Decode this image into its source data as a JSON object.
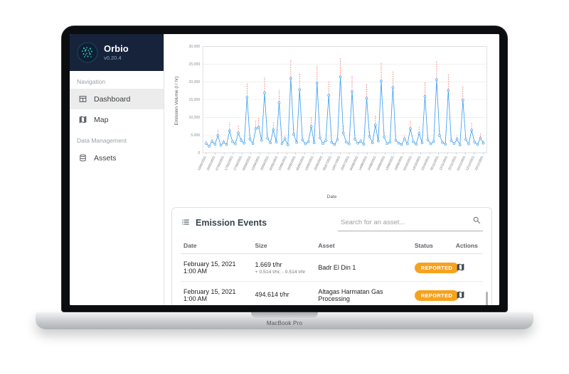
{
  "device": {
    "label": "MacBook Pro"
  },
  "colors": {
    "brand_bg": "#16233B",
    "status": "#F6A21E",
    "chart_line": "#41A0F0",
    "chart_error": "#EE6A5F",
    "selected_bg": "#ECECEC"
  },
  "app": {
    "sidebar": {
      "brand": {
        "name": "Orbio",
        "version": "v0.20.4"
      },
      "sections": [
        {
          "label": "Navigation",
          "items": [
            {
              "label": "Dashboard",
              "icon": "dashboard-icon",
              "selected": true
            },
            {
              "label": "Map",
              "icon": "map-icon",
              "selected": false
            }
          ]
        },
        {
          "label": "Data Management",
          "items": [
            {
              "label": "Assets",
              "icon": "assets-icon",
              "selected": false
            }
          ]
        }
      ]
    },
    "events": {
      "title": "Emission Events",
      "search_placeholder": "Search for an asset...",
      "columns": [
        "Date",
        "Size",
        "Asset",
        "Status",
        "Actions"
      ],
      "rows": [
        {
          "date": "February 15, 2021 1:00 AM",
          "size": "1.669 t/hr",
          "size_uncertainty": "+ 0.514 t/hr, - 0.514 t/hr",
          "asset": "Badr El Din 1",
          "status": "REPORTED"
        },
        {
          "date": "February 15, 2021 1:00 AM",
          "size": "494.614 t/hr",
          "size_uncertainty": "",
          "asset": "Altagas Harmatan Gas Processing",
          "status": "REPORTED"
        }
      ]
    },
    "chart_data": {
      "type": "line",
      "title": "",
      "xlabel": "Date",
      "ylabel": "Emission Volume (l / hr)",
      "ylim": [
        0,
        30000
      ],
      "yticks": [
        0,
        5000,
        10000,
        15000,
        20000,
        25000,
        30000
      ],
      "grid": "horizontal",
      "legend": "none",
      "x_tick_labels": [
        "15/02/2021",
        "25/02/2021",
        "07/03/2021",
        "17/03/2021",
        "27/03/2021",
        "06/04/2021",
        "16/04/2021",
        "26/04/2021",
        "06/05/2021",
        "16/05/2021",
        "26/05/2021",
        "05/06/2021",
        "15/06/2021",
        "25/06/2021",
        "05/07/2021",
        "15/07/2021",
        "25/07/2021",
        "04/08/2021",
        "14/08/2021",
        "24/08/2021",
        "03/09/2021",
        "13/09/2021",
        "23/09/2021",
        "03/10/2021",
        "13/10/2021",
        "23/10/2021",
        "02/11/2021",
        "12/11/2021",
        "22/11/2021",
        "02/12/2021",
        "12/12/2021",
        "22/12/2021"
      ],
      "series": [
        {
          "name": "Emission Volume",
          "values": [
            2600,
            1800,
            3200,
            2400,
            4800,
            2100,
            2900,
            2300,
            6200,
            3100,
            2500,
            5600,
            3400,
            2700,
            15600,
            3800,
            2600,
            6800,
            7200,
            3500,
            16900,
            4100,
            2800,
            6500,
            3000,
            14100,
            2600,
            3900,
            2200,
            21000,
            5200,
            2900,
            17800,
            3600,
            2500,
            3100,
            7400,
            2800,
            19600,
            4200,
            2600,
            3400,
            16200,
            2900,
            2300,
            3700,
            21400,
            5600,
            3000,
            2500,
            17200,
            3800,
            2700,
            3200,
            2400,
            15400,
            4600,
            2800,
            7800,
            3300,
            20200,
            4400,
            2600,
            3000,
            18400,
            3500,
            2700,
            2300,
            3900,
            2500,
            6800,
            3100,
            2400,
            5400,
            2800,
            15900,
            3600,
            2500,
            3200,
            20600,
            4800,
            2900,
            2400,
            17600,
            3400,
            2600,
            3800,
            2200,
            14800,
            3700,
            2500,
            6400,
            3000,
            2300,
            4100,
            2700
          ]
        },
        {
          "name": "Upper uncertainty bound",
          "values": [
            3400,
            1800,
            4300,
            2400,
            6600,
            2100,
            3700,
            2300,
            8600,
            3100,
            2500,
            7800,
            4400,
            2700,
            19800,
            5000,
            2600,
            9200,
            9800,
            3500,
            21300,
            5400,
            2800,
            8800,
            3000,
            17800,
            2600,
            5100,
            2200,
            26200,
            7000,
            2900,
            22400,
            4700,
            2500,
            3100,
            10000,
            2800,
            24600,
            5600,
            2600,
            4400,
            20400,
            2900,
            2300,
            4800,
            26800,
            7600,
            3000,
            2500,
            21700,
            5000,
            2700,
            4200,
            2400,
            19400,
            6200,
            2800,
            10600,
            3300,
            25400,
            5900,
            2600,
            3900,
            23200,
            3500,
            2700,
            2300,
            5100,
            2500,
            9200,
            3100,
            2400,
            7300,
            2800,
            20000,
            4700,
            2500,
            3200,
            25800,
            6500,
            2900,
            2400,
            22100,
            4400,
            2600,
            4900,
            2200,
            18700,
            4800,
            2500,
            8700,
            3000,
            2300,
            5400,
            3500
          ]
        }
      ]
    }
  }
}
